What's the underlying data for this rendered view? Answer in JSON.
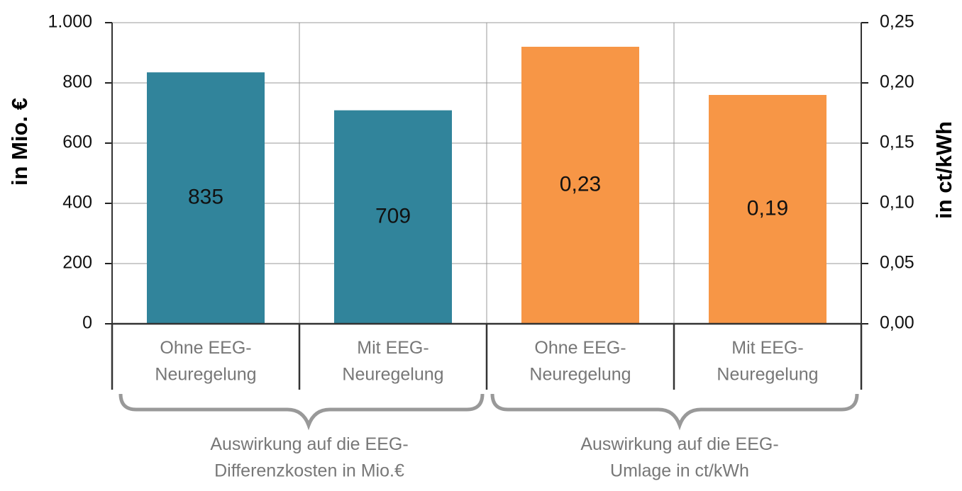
{
  "chart_data": {
    "type": "bar",
    "categories": [
      "Ohne EEG-\nNeuregelung",
      "Mit EEG-\nNeuregelung",
      "Ohne EEG-\nNeuregelung",
      "Mit EEG-\nNeuregelung"
    ],
    "series": [
      {
        "color": "#31849b",
        "values": [
          835,
          709,
          null,
          null
        ]
      },
      {
        "color": "#f79646",
        "axis": "y2",
        "values": [
          null,
          null,
          0.23,
          0.19
        ],
        "value_labels": [
          null,
          null,
          "0,23",
          "0,19"
        ]
      }
    ],
    "groups": [
      "Auswirkung auf die EEG-\nDifferenzkosten  in Mio.€",
      "Auswirkung auf die EEG-\nUmlage in ct/kWh"
    ],
    "ylabel": "in Mio. €",
    "y2label": "in ct/kWh",
    "ylim": [
      0,
      1000
    ],
    "yticks": [
      0,
      200,
      400,
      600,
      800,
      {
        "value": 1000,
        "label": "1.000"
      }
    ],
    "y2lim": [
      0,
      0.25
    ],
    "y2ticks": [
      {
        "value": 0,
        "label": "0,00"
      },
      {
        "value": 0.05,
        "label": "0,05"
      },
      {
        "value": 0.1,
        "label": "0,10"
      },
      {
        "value": 0.15,
        "label": "0,15"
      },
      {
        "value": 0.2,
        "label": "0,20"
      },
      {
        "value": 0.25,
        "label": "0,25"
      }
    ],
    "grid": true
  }
}
